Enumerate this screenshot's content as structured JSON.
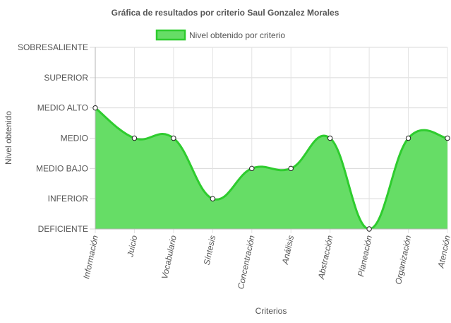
{
  "chart_data": {
    "type": "area",
    "title": "Gráfica de resultados por criterio Saul Gonzalez Morales",
    "xlabel": "Criterios",
    "ylabel": "Nivel obtenido",
    "legend": {
      "position": "top",
      "entries": [
        "Nivel obtenido por criterio"
      ]
    },
    "y_levels": [
      "DEFICIENTE",
      "INFERIOR",
      "MEDIO BAJO",
      "MEDIO",
      "MEDIO ALTO",
      "SUPERIOR",
      "SOBRESALIENTE"
    ],
    "ylim": [
      0,
      6
    ],
    "grid": true,
    "categories": [
      "Información",
      "Juicio",
      "Vocabulario",
      "Síntesis",
      "Concentración",
      "Análisis",
      "Abstracción",
      "Planeación",
      "Organización",
      "Atención"
    ],
    "series": [
      {
        "name": "Nivel obtenido por criterio",
        "values": [
          4,
          3,
          3,
          1,
          2,
          2,
          3,
          0,
          3,
          3
        ],
        "color": "#2ecc2e",
        "fill": "#66dd66"
      }
    ]
  }
}
